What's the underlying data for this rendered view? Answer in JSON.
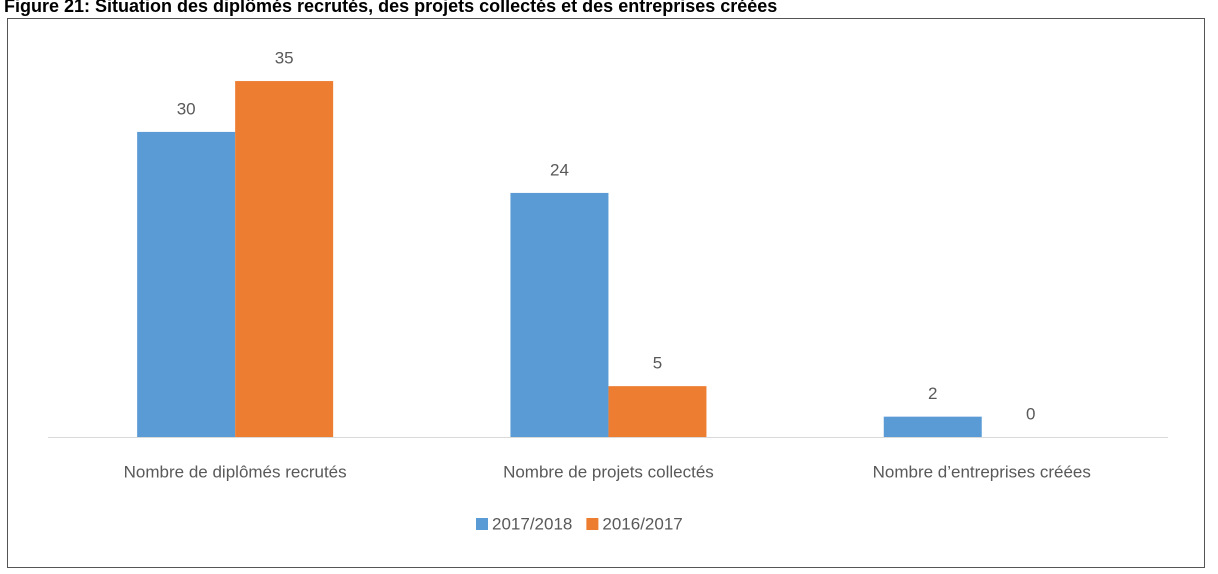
{
  "chart_data": {
    "type": "bar",
    "title": "Figure 21: Situation des diplômés recrutés, des projets collectés et des entreprises créées",
    "categories": [
      "Nombre de diplômés recrutés",
      "Nombre de projets collectés",
      "Nombre d’entreprises créées"
    ],
    "series": [
      {
        "name": "2017/2018",
        "color": "#5b9bd5",
        "values": [
          30,
          24,
          2
        ]
      },
      {
        "name": "2016/2017",
        "color": "#ed7d31",
        "values": [
          35,
          5,
          0
        ]
      }
    ],
    "legend": "bottom"
  }
}
